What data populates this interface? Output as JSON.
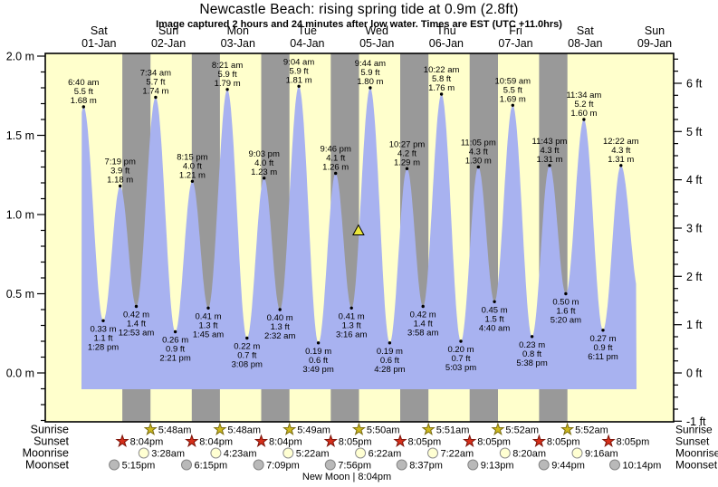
{
  "title": "Newcastle Beach: rising  spring tide at 0.9m (2.8ft)",
  "subtitle": "Image captured 2 hours and 24 minutes after low water. Times are EST (UTC +11.0hrs)",
  "chart_data": {
    "type": "area",
    "title": "Newcastle Beach: rising  spring tide at 0.9m (2.8ft)",
    "days": [
      {
        "name": "Sat",
        "date": "01-Jan"
      },
      {
        "name": "Sun",
        "date": "02-Jan"
      },
      {
        "name": "Mon",
        "date": "03-Jan"
      },
      {
        "name": "Tue",
        "date": "04-Jan"
      },
      {
        "name": "Wed",
        "date": "05-Jan"
      },
      {
        "name": "Thu",
        "date": "06-Jan"
      },
      {
        "name": "Fri",
        "date": "07-Jan"
      },
      {
        "name": "Sat",
        "date": "08-Jan"
      },
      {
        "name": "Sun",
        "date": "09-Jan"
      }
    ],
    "axes": {
      "left_unit": "m",
      "right_unit": "ft",
      "left": [
        {
          "v": 2.0,
          "label": "2.0 m"
        },
        {
          "v": 1.5,
          "label": "1.5 m"
        },
        {
          "v": 1.0,
          "label": "1.0 m"
        },
        {
          "v": 0.5,
          "label": "0.5 m"
        },
        {
          "v": 0.0,
          "label": "0.0 m"
        }
      ],
      "right": [
        {
          "v": 6,
          "label": "6 ft"
        },
        {
          "v": 5,
          "label": "5 ft"
        },
        {
          "v": 4,
          "label": "4 ft"
        },
        {
          "v": 3,
          "label": "3 ft"
        },
        {
          "v": 2,
          "label": "2 ft"
        },
        {
          "v": 1,
          "label": "1 ft"
        },
        {
          "v": 0,
          "label": "0 ft"
        },
        {
          "v": -1,
          "label": "-1 ft"
        }
      ],
      "ylim_m": [
        -0.31,
        2.02
      ]
    },
    "tide_events": [
      {
        "day": 0,
        "type": "high",
        "time": "6:40 am",
        "hour": 6.667,
        "meters": 1.68,
        "meters_label": "1.68 m",
        "feet_label": "5.5 ft"
      },
      {
        "day": 0,
        "type": "low",
        "time": "1:28 pm",
        "hour": 13.467,
        "meters": 0.33,
        "meters_label": "0.33 m",
        "feet_label": "1.1 ft"
      },
      {
        "day": 0,
        "type": "high",
        "time": "7:19 pm",
        "hour": 19.317,
        "meters": 1.18,
        "meters_label": "1.18 m",
        "feet_label": "3.9 ft"
      },
      {
        "day": 1,
        "type": "low",
        "time": "12:53 am",
        "hour": 0.883,
        "meters": 0.42,
        "meters_label": "0.42 m",
        "feet_label": "1.4 ft"
      },
      {
        "day": 1,
        "type": "high",
        "time": "7:34 am",
        "hour": 7.567,
        "meters": 1.74,
        "meters_label": "1.74 m",
        "feet_label": "5.7 ft"
      },
      {
        "day": 1,
        "type": "low",
        "time": "2:21 pm",
        "hour": 14.35,
        "meters": 0.26,
        "meters_label": "0.26 m",
        "feet_label": "0.9 ft"
      },
      {
        "day": 1,
        "type": "high",
        "time": "8:15 pm",
        "hour": 20.25,
        "meters": 1.21,
        "meters_label": "1.21 m",
        "feet_label": "4.0 ft"
      },
      {
        "day": 2,
        "type": "low",
        "time": "1:45 am",
        "hour": 1.75,
        "meters": 0.41,
        "meters_label": "0.41 m",
        "feet_label": "1.3 ft"
      },
      {
        "day": 2,
        "type": "high",
        "time": "8:21 am",
        "hour": 8.35,
        "meters": 1.79,
        "meters_label": "1.79 m",
        "feet_label": "5.9 ft"
      },
      {
        "day": 2,
        "type": "low",
        "time": "3:08 pm",
        "hour": 15.133,
        "meters": 0.22,
        "meters_label": "0.22 m",
        "feet_label": "0.7 ft"
      },
      {
        "day": 2,
        "type": "high",
        "time": "9:03 pm",
        "hour": 21.05,
        "meters": 1.23,
        "meters_label": "1.23 m",
        "feet_label": "4.0 ft"
      },
      {
        "day": 3,
        "type": "low",
        "time": "2:32 am",
        "hour": 2.533,
        "meters": 0.4,
        "meters_label": "0.40 m",
        "feet_label": "1.3 ft"
      },
      {
        "day": 3,
        "type": "high",
        "time": "9:04 am",
        "hour": 9.067,
        "meters": 1.81,
        "meters_label": "1.81 m",
        "feet_label": "5.9 ft"
      },
      {
        "day": 3,
        "type": "low",
        "time": "3:49 pm",
        "hour": 15.817,
        "meters": 0.19,
        "meters_label": "0.19 m",
        "feet_label": "0.6 ft"
      },
      {
        "day": 3,
        "type": "high",
        "time": "9:46 pm",
        "hour": 21.767,
        "meters": 1.26,
        "meters_label": "1.26 m",
        "feet_label": "4.1 ft"
      },
      {
        "day": 4,
        "type": "low",
        "time": "3:16 am",
        "hour": 3.267,
        "meters": 0.41,
        "meters_label": "0.41 m",
        "feet_label": "1.3 ft"
      },
      {
        "day": 4,
        "type": "high",
        "time": "9:44 am",
        "hour": 9.733,
        "meters": 1.8,
        "meters_label": "1.80 m",
        "feet_label": "5.9 ft"
      },
      {
        "day": 4,
        "type": "low",
        "time": "4:28 pm",
        "hour": 16.467,
        "meters": 0.19,
        "meters_label": "0.19 m",
        "feet_label": "0.6 ft"
      },
      {
        "day": 4,
        "type": "high",
        "time": "10:27 pm",
        "hour": 22.45,
        "meters": 1.29,
        "meters_label": "1.29 m",
        "feet_label": "4.2 ft"
      },
      {
        "day": 5,
        "type": "low",
        "time": "3:58 am",
        "hour": 3.967,
        "meters": 0.42,
        "meters_label": "0.42 m",
        "feet_label": "1.4 ft"
      },
      {
        "day": 5,
        "type": "high",
        "time": "10:22 am",
        "hour": 10.367,
        "meters": 1.76,
        "meters_label": "1.76 m",
        "feet_label": "5.8 ft"
      },
      {
        "day": 5,
        "type": "low",
        "time": "5:03 pm",
        "hour": 17.05,
        "meters": 0.2,
        "meters_label": "0.20 m",
        "feet_label": "0.7 ft"
      },
      {
        "day": 5,
        "type": "high",
        "time": "11:05 pm",
        "hour": 23.083,
        "meters": 1.3,
        "meters_label": "1.30 m",
        "feet_label": "4.3 ft"
      },
      {
        "day": 6,
        "type": "low",
        "time": "4:40 am",
        "hour": 4.667,
        "meters": 0.45,
        "meters_label": "0.45 m",
        "feet_label": "1.5 ft"
      },
      {
        "day": 6,
        "type": "high",
        "time": "10:59 am",
        "hour": 10.983,
        "meters": 1.69,
        "meters_label": "1.69 m",
        "feet_label": "5.5 ft"
      },
      {
        "day": 6,
        "type": "low",
        "time": "5:38 pm",
        "hour": 17.633,
        "meters": 0.23,
        "meters_label": "0.23 m",
        "feet_label": "0.8 ft"
      },
      {
        "day": 6,
        "type": "high",
        "time": "11:43 pm",
        "hour": 23.717,
        "meters": 1.31,
        "meters_label": "1.31 m",
        "feet_label": "4.3 ft"
      },
      {
        "day": 7,
        "type": "low",
        "time": "5:20 am",
        "hour": 5.333,
        "meters": 0.5,
        "meters_label": "0.50 m",
        "feet_label": "1.6 ft"
      },
      {
        "day": 7,
        "type": "high",
        "time": "11:34 am",
        "hour": 11.567,
        "meters": 1.6,
        "meters_label": "1.60 m",
        "feet_label": "5.2 ft"
      },
      {
        "day": 7,
        "type": "low",
        "time": "6:11 pm",
        "hour": 18.183,
        "meters": 0.27,
        "meters_label": "0.27 m",
        "feet_label": "0.9 ft"
      },
      {
        "day": 8,
        "type": "high",
        "time": "12:22 am",
        "hour": 0.367,
        "meters": 1.31,
        "meters_label": "1.31 m",
        "feet_label": "4.3 ft"
      }
    ],
    "current_marker": {
      "day": 4,
      "hour": 5.667,
      "meters": 0.9,
      "symbol": "triangle"
    }
  },
  "sun_moon": {
    "rows": [
      {
        "label": "Sunrise",
        "icon": "sunrise-icon",
        "shape": "star",
        "color": "#cdb91e",
        "stroke": "#7a6c10",
        "events": [
          {
            "day": 1,
            "time": "5:48am",
            "hour": 5.8
          },
          {
            "day": 2,
            "time": "5:48am",
            "hour": 5.8
          },
          {
            "day": 3,
            "time": "5:49am",
            "hour": 5.817
          },
          {
            "day": 4,
            "time": "5:50am",
            "hour": 5.833
          },
          {
            "day": 5,
            "time": "5:51am",
            "hour": 5.85
          },
          {
            "day": 6,
            "time": "5:52am",
            "hour": 5.867
          },
          {
            "day": 7,
            "time": "5:52am",
            "hour": 5.867
          }
        ]
      },
      {
        "label": "Sunset",
        "icon": "sunset-icon",
        "shape": "star",
        "color": "#d62e19",
        "stroke": "#7c150b",
        "events": [
          {
            "day": 0,
            "time": "8:04pm",
            "hour": 20.067
          },
          {
            "day": 1,
            "time": "8:04pm",
            "hour": 20.067
          },
          {
            "day": 2,
            "time": "8:04pm",
            "hour": 20.067
          },
          {
            "day": 3,
            "time": "8:05pm",
            "hour": 20.083
          },
          {
            "day": 4,
            "time": "8:05pm",
            "hour": 20.083
          },
          {
            "day": 5,
            "time": "8:05pm",
            "hour": 20.083
          },
          {
            "day": 6,
            "time": "8:05pm",
            "hour": 20.083
          },
          {
            "day": 7,
            "time": "8:05pm",
            "hour": 20.083
          }
        ]
      },
      {
        "label": "Moonrise",
        "icon": "moonrise-icon",
        "shape": "circle",
        "color": "#ffffd2",
        "stroke": "#8f8f8f",
        "events": [
          {
            "day": 1,
            "time": "3:28am",
            "hour": 3.467
          },
          {
            "day": 2,
            "time": "4:23am",
            "hour": 4.383
          },
          {
            "day": 3,
            "time": "5:22am",
            "hour": 5.367
          },
          {
            "day": 4,
            "time": "6:22am",
            "hour": 6.367
          },
          {
            "day": 5,
            "time": "7:22am",
            "hour": 7.367
          },
          {
            "day": 6,
            "time": "8:20am",
            "hour": 8.333
          },
          {
            "day": 7,
            "time": "9:16am",
            "hour": 9.267
          }
        ]
      },
      {
        "label": "Moonset",
        "icon": "moonset-icon",
        "shape": "circle",
        "color": "#b9b9b9",
        "stroke": "#848484",
        "events": [
          {
            "day": 0,
            "time": "5:15pm",
            "hour": 17.25
          },
          {
            "day": 1,
            "time": "6:15pm",
            "hour": 18.25
          },
          {
            "day": 2,
            "time": "7:09pm",
            "hour": 19.15
          },
          {
            "day": 3,
            "time": "7:56pm",
            "hour": 19.933
          },
          {
            "day": 4,
            "time": "8:37pm",
            "hour": 20.617
          },
          {
            "day": 5,
            "time": "9:13pm",
            "hour": 21.217
          },
          {
            "day": 6,
            "time": "9:44pm",
            "hour": 21.733
          },
          {
            "day": 7,
            "time": "10:14pm",
            "hour": 22.233
          }
        ]
      }
    ],
    "note": "New Moon | 8:04pm"
  },
  "colors": {
    "day_band": "#ffffcc",
    "night_band": "#999999",
    "tide_fill": "#a8b2f0",
    "day_label": "#ee1111",
    "marker_fill": "#ece73b",
    "text": "#000000"
  }
}
